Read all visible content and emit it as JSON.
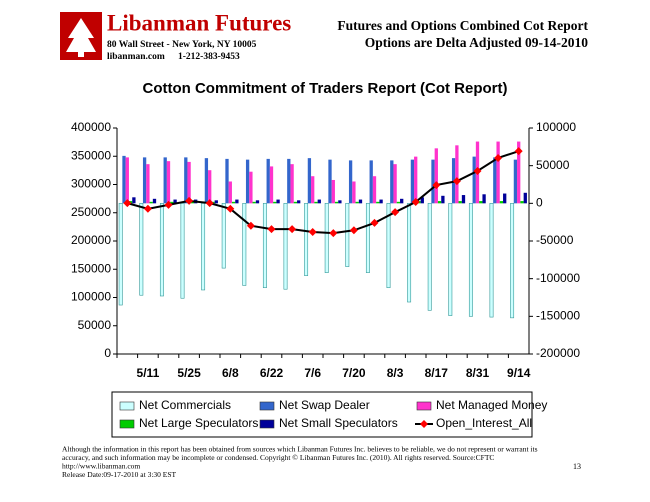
{
  "header": {
    "company": "Libanman Futures",
    "address": "80 Wall Street - New York, NY 10005",
    "website": "libanman.com",
    "phone": "1-212-383-9453",
    "report_title": "Futures and Options Combined Cot Report",
    "report_subtitle": "Options are Delta Adjusted  09-14-2010"
  },
  "chart_data": {
    "type": "bar",
    "title": "Cotton Commitment of Traders Report (Cot Report)",
    "categories": [
      null,
      "5/11",
      null,
      "5/25",
      null,
      "6/8",
      null,
      "6/22",
      null,
      "7/6",
      null,
      "7/20",
      null,
      "8/3",
      null,
      "8/17",
      null,
      "8/31",
      null,
      "9/14"
    ],
    "ylim": [
      0,
      400000
    ],
    "yticks": [
      0,
      50000,
      100000,
      150000,
      200000,
      250000,
      300000,
      350000,
      400000
    ],
    "y2lim": [
      -200000,
      100000
    ],
    "y2ticks": [
      -200000,
      -150000,
      -100000,
      -50000,
      0,
      50000,
      100000
    ],
    "grid": false,
    "legend": "bottom",
    "series": [
      {
        "name": "Net Commercials",
        "color": "#ccffff",
        "axis": "y2",
        "values": [
          -135000,
          -122000,
          -123000,
          -126000,
          -115000,
          -86000,
          -109000,
          -112000,
          -114000,
          -96000,
          -92000,
          -84000,
          -92000,
          -112000,
          -131000,
          -142000,
          -149000,
          -150000,
          -151000,
          -152000
        ]
      },
      {
        "name": "Net Swap Dealer",
        "color": "#3366cc",
        "axis": "y2",
        "values": [
          63000,
          61000,
          61000,
          61000,
          60000,
          59000,
          58000,
          59000,
          59000,
          60000,
          58000,
          57000,
          57000,
          57000,
          58000,
          58000,
          60000,
          62000,
          61000,
          58000
        ]
      },
      {
        "name": "Net Managed Money",
        "color": "#ff33cc",
        "axis": "y2",
        "values": [
          61000,
          52000,
          56000,
          55000,
          44000,
          29000,
          42000,
          49000,
          52000,
          36000,
          31000,
          29000,
          36000,
          52000,
          62000,
          73000,
          77000,
          82000,
          82000,
          82000
        ]
      },
      {
        "name": "Net Large Speculators",
        "color": "#00cc00",
        "axis": "y2",
        "values": [
          3000,
          2000,
          2000,
          2000,
          2000,
          2000,
          2000,
          2000,
          2000,
          2000,
          2000,
          2000,
          2000,
          2000,
          3000,
          3000,
          3000,
          3000,
          3000,
          3000
        ]
      },
      {
        "name": "Net Small Speculators",
        "color": "#000099",
        "axis": "y2",
        "values": [
          8000,
          6000,
          5000,
          5000,
          4000,
          5000,
          4000,
          5000,
          4000,
          5000,
          4000,
          5000,
          5000,
          6000,
          8000,
          10000,
          11000,
          12000,
          13000,
          14000
        ]
      },
      {
        "name": "Open_Interest_All",
        "color": "#000000",
        "marker_color": "#ff0000",
        "type": "line",
        "axis": "y",
        "values": [
          267000,
          257000,
          264000,
          271000,
          267000,
          257000,
          227000,
          221000,
          221000,
          216000,
          214000,
          219000,
          232000,
          251000,
          269000,
          299000,
          306000,
          324000,
          347000,
          359000
        ]
      }
    ]
  },
  "footer": {
    "disclaimer": [
      "Although the information in this report has been obtained from sources which Libanman Futures Inc. believes to be reliable, we do not represent or warrant its",
      "accuracy, and such information may be incomplete or condensed. Copyright © Libanman Futures Inc. (2010). All rights reserved.  Source:CFTC",
      "http://www.libanman.com",
      "Release Date:09-17-2010 at 3:30 EST"
    ],
    "page_number": "13"
  }
}
